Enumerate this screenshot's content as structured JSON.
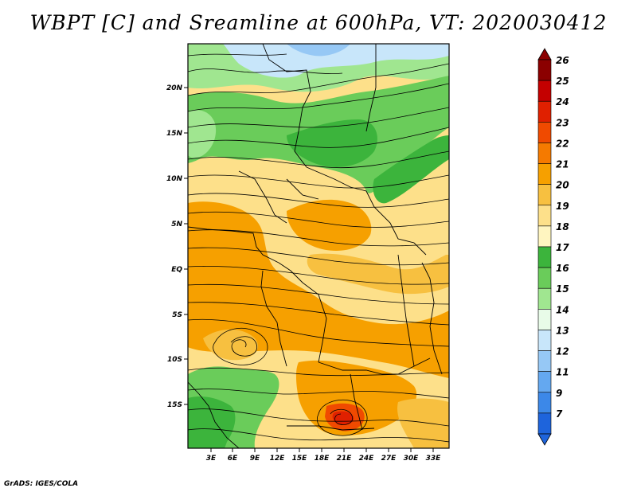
{
  "title": "WBPT [C] and Sreamline at 600hPa, VT: 2020030412",
  "credit": "GrADS: IGES/COLA",
  "lat_labels": [
    "20N",
    "15N",
    "10N",
    "5N",
    "EQ",
    "5S",
    "10S",
    "15S"
  ],
  "lon_labels": [
    "3E",
    "6E",
    "9E",
    "12E",
    "15E",
    "18E",
    "21E",
    "24E",
    "27E",
    "30E",
    "33E"
  ],
  "colorbar": {
    "labels": [
      "26",
      "25",
      "24",
      "23",
      "22",
      "21",
      "20",
      "19",
      "18",
      "17",
      "16",
      "15",
      "14",
      "13",
      "12",
      "11",
      "9",
      "7"
    ],
    "colors": [
      "#8b0000",
      "#c40000",
      "#e02000",
      "#f04a00",
      "#f57a00",
      "#f6a000",
      "#f7c040",
      "#fde08a",
      "#fff5c0",
      "#3cb43c",
      "#6acc5a",
      "#a0e690",
      "#e8fbe8",
      "#c8e6fa",
      "#96c8f5",
      "#64a8f0",
      "#3c88e8",
      "#1e64dc"
    ]
  },
  "colors": {
    "warm_orange": "#f6a000",
    "light_orange": "#f7c040",
    "pale_yellow": "#fde08a",
    "green": "#3cb43c",
    "light_green": "#a0e690",
    "light_blue": "#c8e6fa",
    "deep_orange": "#f04a00"
  }
}
